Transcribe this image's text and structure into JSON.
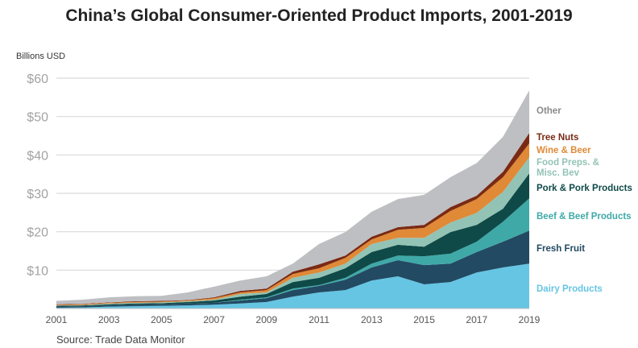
{
  "chart_data": {
    "type": "area",
    "stacked": true,
    "title": "China’s Global Consumer-Oriented Product Imports, 2001-2019",
    "ylabel": "Billions USD",
    "source": "Source: Trade Data Monitor",
    "ylim": [
      0,
      60
    ],
    "yticks": [
      "$10",
      "$20",
      "$30",
      "$40",
      "$50",
      "$60"
    ],
    "ytick_values": [
      10,
      20,
      30,
      40,
      50,
      60
    ],
    "x": [
      2001,
      2002,
      2003,
      2004,
      2005,
      2006,
      2007,
      2008,
      2009,
      2010,
      2011,
      2012,
      2013,
      2014,
      2015,
      2016,
      2017,
      2018,
      2019
    ],
    "xticks": [
      "2001",
      "2003",
      "2005",
      "2007",
      "2009",
      "2011",
      "2013",
      "2015",
      "2017",
      "2019"
    ],
    "grid": true,
    "legend": "right, inline labels",
    "series": [
      {
        "name": "Dairy Products",
        "color": "#66c5e3",
        "values": [
          0.2,
          0.3,
          0.5,
          0.6,
          0.7,
          0.8,
          1.0,
          1.3,
          1.7,
          3.1,
          4.2,
          4.8,
          7.3,
          8.4,
          6.3,
          6.9,
          9.4,
          10.7,
          11.7
        ]
      },
      {
        "name": "Fresh Fruit",
        "color": "#224a63",
        "values": [
          0.3,
          0.3,
          0.3,
          0.4,
          0.4,
          0.5,
          0.5,
          0.8,
          1.0,
          1.7,
          1.7,
          2.7,
          3.4,
          4.2,
          5.0,
          4.8,
          5.3,
          6.7,
          8.6
        ]
      },
      {
        "name": "Beef & Beef Products",
        "color": "#3fa9a8",
        "values": [
          0,
          0,
          0,
          0,
          0,
          0,
          0,
          0.2,
          0.2,
          0.4,
          0.2,
          0.5,
          1.0,
          1.2,
          2.3,
          2.6,
          2.7,
          5.2,
          8.4
        ]
      },
      {
        "name": "Pork & Pork Products",
        "color": "#0f4a48",
        "values": [
          0.2,
          0.2,
          0.3,
          0.3,
          0.3,
          0.4,
          0.6,
          0.8,
          0.9,
          1.7,
          1.9,
          2.5,
          3.0,
          2.8,
          2.5,
          5.6,
          4.4,
          3.4,
          6.5
        ]
      },
      {
        "name": "Food Preps. & Misc. Bev",
        "color": "#93c3b5",
        "label_lines": [
          "Food Preps. &",
          "Misc. Bev"
        ],
        "values": [
          0.1,
          0.1,
          0.2,
          0.2,
          0.2,
          0.2,
          0.2,
          0.7,
          0.4,
          1.1,
          1.4,
          1.2,
          2.1,
          1.8,
          2.3,
          2.5,
          3.1,
          4.4,
          4.2
        ]
      },
      {
        "name": "Wine & Beer",
        "color": "#e08936",
        "values": [
          0.2,
          0.2,
          0.2,
          0.2,
          0.2,
          0.2,
          0.4,
          0.4,
          0.6,
          1.0,
          1.1,
          1.5,
          1.2,
          2.1,
          2.6,
          3.0,
          3.6,
          3.8,
          3.6
        ]
      },
      {
        "name": "Tree Nuts",
        "color": "#7a2a14",
        "values": [
          0.1,
          0.1,
          0.1,
          0.2,
          0.2,
          0.1,
          0.2,
          0.4,
          0.4,
          0.6,
          1.0,
          0.6,
          0.7,
          0.7,
          0.8,
          1.0,
          0.9,
          1.4,
          2.7
        ]
      },
      {
        "name": "Other",
        "color": "#bebfc3",
        "label_color": "#8a8a8a",
        "values": [
          0.9,
          1.1,
          1.3,
          1.3,
          1.3,
          2.0,
          2.8,
          2.7,
          3.2,
          2.1,
          5.3,
          6.1,
          6.5,
          7.3,
          7.8,
          7.8,
          8.5,
          9.1,
          11.1
        ]
      }
    ]
  }
}
